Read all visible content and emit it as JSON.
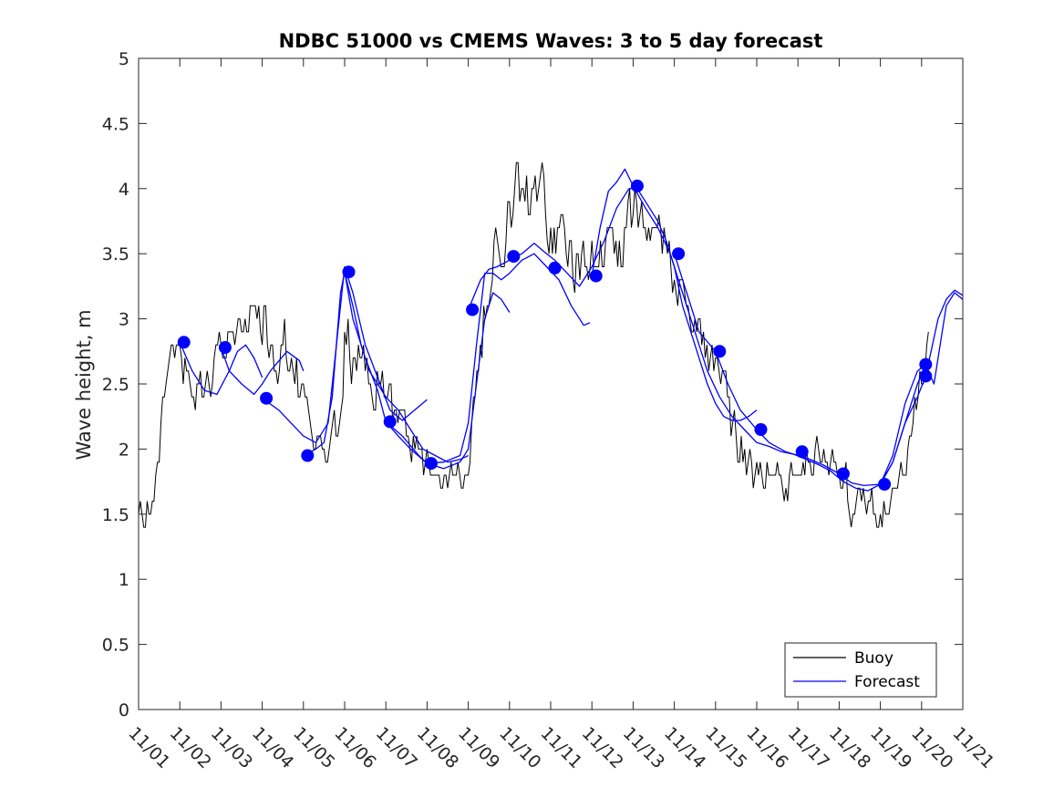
{
  "chart_data": {
    "type": "line",
    "title": "NDBC 51000 vs CMEMS Waves: 3 to 5 day forecast",
    "xlabel": "",
    "ylabel": "Wave height, m",
    "xlim": [
      0,
      20
    ],
    "ylim": [
      0,
      5
    ],
    "x_tick_labels": [
      "11/01",
      "11/02",
      "11/03",
      "11/04",
      "11/05",
      "11/06",
      "11/07",
      "11/08",
      "11/09",
      "11/10",
      "11/11",
      "11/12",
      "11/13",
      "11/14",
      "11/15",
      "11/16",
      "11/17",
      "11/18",
      "11/19",
      "11/20",
      "11/21"
    ],
    "y_tick_labels": [
      "0",
      "0.5",
      "1",
      "1.5",
      "2",
      "2.5",
      "3",
      "3.5",
      "4",
      "4.5",
      "5"
    ],
    "grid": false,
    "legend": {
      "position": "bottom-right",
      "entries": [
        "Buoy",
        "Forecast"
      ]
    },
    "colors": {
      "buoy": "#000000",
      "forecast": "#0000ff",
      "axis": "#262626"
    },
    "series": [
      {
        "name": "Buoy",
        "anchors": [
          [
            0,
            1.6
          ],
          [
            0.2,
            1.5
          ],
          [
            0.4,
            1.8
          ],
          [
            0.6,
            2.3
          ],
          [
            0.75,
            2.8
          ],
          [
            0.9,
            2.7
          ],
          [
            1.1,
            2.5
          ],
          [
            1.4,
            2.4
          ],
          [
            1.7,
            2.5
          ],
          [
            1.9,
            2.6
          ],
          [
            2.1,
            2.7
          ],
          [
            2.3,
            2.9
          ],
          [
            2.5,
            3.0
          ],
          [
            2.7,
            2.9
          ],
          [
            2.9,
            3.0
          ],
          [
            3.1,
            2.9
          ],
          [
            3.3,
            2.7
          ],
          [
            3.6,
            2.8
          ],
          [
            3.8,
            2.6
          ],
          [
            4.0,
            2.4
          ],
          [
            4.2,
            2.1
          ],
          [
            4.4,
            2.0
          ],
          [
            4.6,
            1.9
          ],
          [
            4.8,
            2.1
          ],
          [
            4.9,
            2.4
          ],
          [
            5.0,
            2.9
          ],
          [
            5.2,
            2.7
          ],
          [
            5.5,
            2.6
          ],
          [
            5.8,
            2.5
          ],
          [
            6.0,
            2.5
          ],
          [
            6.3,
            2.3
          ],
          [
            6.5,
            2.2
          ],
          [
            6.8,
            2.0
          ],
          [
            7.0,
            1.9
          ],
          [
            7.3,
            1.8
          ],
          [
            7.6,
            1.7
          ],
          [
            7.9,
            1.8
          ],
          [
            8.0,
            1.9
          ],
          [
            8.1,
            2.2
          ],
          [
            8.3,
            2.8
          ],
          [
            8.6,
            3.6
          ],
          [
            8.9,
            3.7
          ],
          [
            9.1,
            4.0
          ],
          [
            9.3,
            4.1
          ],
          [
            9.5,
            3.9
          ],
          [
            9.7,
            4.0
          ],
          [
            9.9,
            3.9
          ],
          [
            10.1,
            3.6
          ],
          [
            10.4,
            3.5
          ],
          [
            10.7,
            3.4
          ],
          [
            11.0,
            3.5
          ],
          [
            11.2,
            3.5
          ],
          [
            11.4,
            3.5
          ],
          [
            11.7,
            3.6
          ],
          [
            12.0,
            3.8
          ],
          [
            12.2,
            3.9
          ],
          [
            12.4,
            3.9
          ],
          [
            12.6,
            3.8
          ],
          [
            12.8,
            3.5
          ],
          [
            13.0,
            3.4
          ],
          [
            13.2,
            3.3
          ],
          [
            13.4,
            3.1
          ],
          [
            13.6,
            2.9
          ],
          [
            13.9,
            2.7
          ],
          [
            14.2,
            2.4
          ],
          [
            14.5,
            2.1
          ],
          [
            14.8,
            1.9
          ],
          [
            15.1,
            1.8
          ],
          [
            15.4,
            1.8
          ],
          [
            15.7,
            1.8
          ],
          [
            16.0,
            1.85
          ],
          [
            16.3,
            1.9
          ],
          [
            16.6,
            1.95
          ],
          [
            16.9,
            1.9
          ],
          [
            17.1,
            1.8
          ],
          [
            17.3,
            1.6
          ],
          [
            17.6,
            1.5
          ],
          [
            17.8,
            1.5
          ],
          [
            18.0,
            1.5
          ],
          [
            18.2,
            1.6
          ],
          [
            18.4,
            1.7
          ],
          [
            18.6,
            1.9
          ],
          [
            18.8,
            2.2
          ],
          [
            19.0,
            2.4
          ],
          [
            19.2,
            2.7
          ]
        ]
      },
      {
        "name": "Forecast",
        "segments": [
          [
            [
              1.0,
              2.82
            ],
            [
              1.3,
              2.6
            ],
            [
              1.6,
              2.45
            ],
            [
              1.9,
              2.42
            ],
            [
              2.2,
              2.6
            ],
            [
              2.4,
              2.75
            ],
            [
              2.6,
              2.8
            ],
            [
              2.8,
              2.7
            ],
            [
              3.0,
              2.55
            ]
          ],
          [
            [
              2.0,
              2.78
            ],
            [
              2.2,
              2.6
            ],
            [
              2.5,
              2.5
            ],
            [
              2.8,
              2.42
            ],
            [
              3.0,
              2.5
            ],
            [
              3.2,
              2.6
            ],
            [
              3.6,
              2.75
            ],
            [
              3.9,
              2.68
            ],
            [
              4.0,
              2.6
            ]
          ],
          [
            [
              3.0,
              2.39
            ],
            [
              3.4,
              2.3
            ],
            [
              3.7,
              2.2
            ],
            [
              4.0,
              2.1
            ],
            [
              4.3,
              2.05
            ],
            [
              4.6,
              2.2
            ],
            [
              4.8,
              2.8
            ],
            [
              5.0,
              3.4
            ],
            [
              5.2,
              3.2
            ],
            [
              5.5,
              2.8
            ],
            [
              5.8,
              2.55
            ],
            [
              6.1,
              2.3
            ],
            [
              6.4,
              2.22
            ],
            [
              6.7,
              2.3
            ],
            [
              7.0,
              2.38
            ]
          ],
          [
            [
              4.0,
              1.95
            ],
            [
              4.3,
              2.0
            ],
            [
              4.5,
              2.05
            ],
            [
              4.7,
              2.4
            ],
            [
              4.9,
              3.2
            ],
            [
              5.0,
              3.36
            ],
            [
              5.2,
              3.1
            ],
            [
              5.4,
              2.8
            ],
            [
              5.6,
              2.6
            ],
            [
              5.8,
              2.5
            ],
            [
              6.0,
              2.4
            ],
            [
              6.3,
              2.3
            ],
            [
              6.6,
              2.15
            ],
            [
              6.9,
              2.0
            ],
            [
              7.2,
              1.95
            ],
            [
              7.5,
              1.9
            ],
            [
              7.8,
              1.92
            ],
            [
              8.0,
              1.95
            ]
          ],
          [
            [
              5.0,
              3.36
            ],
            [
              5.2,
              3.0
            ],
            [
              5.5,
              2.7
            ],
            [
              5.8,
              2.45
            ],
            [
              6.0,
              2.21
            ],
            [
              6.3,
              2.1
            ],
            [
              6.6,
              2.0
            ],
            [
              7.0,
              1.89
            ],
            [
              7.4,
              1.85
            ],
            [
              7.8,
              1.9
            ],
            [
              8.0,
              2.0
            ],
            [
              8.2,
              2.5
            ],
            [
              8.4,
              3.0
            ],
            [
              8.6,
              3.2
            ],
            [
              8.8,
              3.15
            ],
            [
              9.0,
              3.05
            ]
          ],
          [
            [
              6.0,
              2.21
            ],
            [
              6.4,
              2.1
            ],
            [
              6.8,
              1.95
            ],
            [
              7.0,
              1.89
            ],
            [
              7.4,
              1.9
            ],
            [
              7.8,
              1.95
            ],
            [
              8.0,
              2.2
            ],
            [
              8.2,
              2.8
            ],
            [
              8.4,
              3.35
            ],
            [
              8.6,
              3.35
            ],
            [
              8.8,
              3.3
            ],
            [
              9.0,
              3.35
            ],
            [
              9.3,
              3.45
            ],
            [
              9.6,
              3.5
            ],
            [
              9.9,
              3.4
            ],
            [
              10.2,
              3.3
            ],
            [
              10.5,
              3.1
            ],
            [
              10.8,
              2.95
            ],
            [
              10.95,
              2.97
            ]
          ],
          [
            [
              8.0,
              3.07
            ],
            [
              8.3,
              3.3
            ],
            [
              8.5,
              3.38
            ],
            [
              8.7,
              3.4
            ],
            [
              9.0,
              3.45
            ],
            [
              9.3,
              3.5
            ],
            [
              9.6,
              3.58
            ],
            [
              9.9,
              3.5
            ],
            [
              10.1,
              3.45
            ],
            [
              10.4,
              3.35
            ],
            [
              10.7,
              3.25
            ],
            [
              11.0,
              3.4
            ],
            [
              11.3,
              3.6
            ],
            [
              11.6,
              3.85
            ],
            [
              11.9,
              4.0
            ],
            [
              12.1,
              4.0
            ],
            [
              12.4,
              3.85
            ],
            [
              12.6,
              3.75
            ],
            [
              12.8,
              3.6
            ],
            [
              13.0,
              3.4
            ],
            [
              13.2,
              3.1
            ],
            [
              13.4,
              2.9
            ],
            [
              13.6,
              2.7
            ],
            [
              13.8,
              2.5
            ],
            [
              14.0,
              2.35
            ],
            [
              14.2,
              2.25
            ],
            [
              14.4,
              2.22
            ],
            [
              14.6,
              2.22
            ],
            [
              14.8,
              2.25
            ],
            [
              15.0,
              2.3
            ]
          ],
          [
            [
              11.0,
              3.33
            ],
            [
              11.2,
              3.7
            ],
            [
              11.4,
              3.98
            ],
            [
              11.6,
              4.05
            ],
            [
              11.8,
              4.15
            ],
            [
              12.0,
              4.02
            ],
            [
              12.3,
              3.85
            ],
            [
              12.6,
              3.7
            ],
            [
              12.9,
              3.5
            ],
            [
              13.2,
              3.2
            ],
            [
              13.5,
              2.9
            ],
            [
              13.8,
              2.6
            ],
            [
              14.1,
              2.4
            ],
            [
              14.4,
              2.25
            ],
            [
              14.7,
              2.15
            ],
            [
              15.0,
              2.05
            ],
            [
              15.3,
              2.02
            ],
            [
              15.6,
              1.98
            ],
            [
              15.9,
              1.96
            ],
            [
              16.2,
              1.92
            ],
            [
              16.5,
              1.88
            ],
            [
              16.8,
              1.83
            ],
            [
              17.1,
              1.75
            ],
            [
              17.4,
              1.7
            ],
            [
              17.7,
              1.68
            ],
            [
              18.0,
              1.73
            ],
            [
              18.3,
              1.9
            ],
            [
              18.6,
              2.2
            ],
            [
              18.9,
              2.5
            ],
            [
              19.1,
              2.65
            ]
          ],
          [
            [
              13.0,
              3.5
            ],
            [
              13.3,
              3.2
            ],
            [
              13.6,
              2.9
            ],
            [
              14.0,
              2.75
            ],
            [
              14.3,
              2.5
            ],
            [
              14.6,
              2.3
            ],
            [
              15.0,
              2.15
            ],
            [
              15.3,
              2.05
            ],
            [
              15.7,
              1.98
            ],
            [
              16.0,
              1.95
            ],
            [
              16.3,
              1.92
            ],
            [
              16.6,
              1.88
            ],
            [
              17.0,
              1.81
            ],
            [
              17.3,
              1.74
            ],
            [
              17.6,
              1.72
            ],
            [
              18.0,
              1.73
            ],
            [
              18.3,
              1.95
            ],
            [
              18.6,
              2.35
            ],
            [
              18.9,
              2.6
            ],
            [
              19.1,
              2.65
            ],
            [
              19.3,
              2.5
            ],
            [
              19.6,
              3.1
            ],
            [
              19.8,
              3.2
            ],
            [
              20.0,
              3.15
            ]
          ],
          [
            [
              18.0,
              1.73
            ],
            [
              18.3,
              1.9
            ],
            [
              18.6,
              2.2
            ],
            [
              18.9,
              2.4
            ],
            [
              19.1,
              2.56
            ],
            [
              19.4,
              3.0
            ],
            [
              19.6,
              3.15
            ],
            [
              19.8,
              3.22
            ],
            [
              20.0,
              3.18
            ]
          ]
        ],
        "markers": [
          [
            1.1,
            2.82
          ],
          [
            2.1,
            2.78
          ],
          [
            3.1,
            2.39
          ],
          [
            4.1,
            1.95
          ],
          [
            5.1,
            3.36
          ],
          [
            6.1,
            2.21
          ],
          [
            7.1,
            1.89
          ],
          [
            8.1,
            3.07
          ],
          [
            9.1,
            3.48
          ],
          [
            10.1,
            3.39
          ],
          [
            11.1,
            3.33
          ],
          [
            12.1,
            4.02
          ],
          [
            13.1,
            3.5
          ],
          [
            14.1,
            2.75
          ],
          [
            15.1,
            2.15
          ],
          [
            16.1,
            1.98
          ],
          [
            17.1,
            1.81
          ],
          [
            18.1,
            1.73
          ],
          [
            19.1,
            2.65
          ],
          [
            19.1,
            2.56
          ]
        ]
      }
    ]
  }
}
